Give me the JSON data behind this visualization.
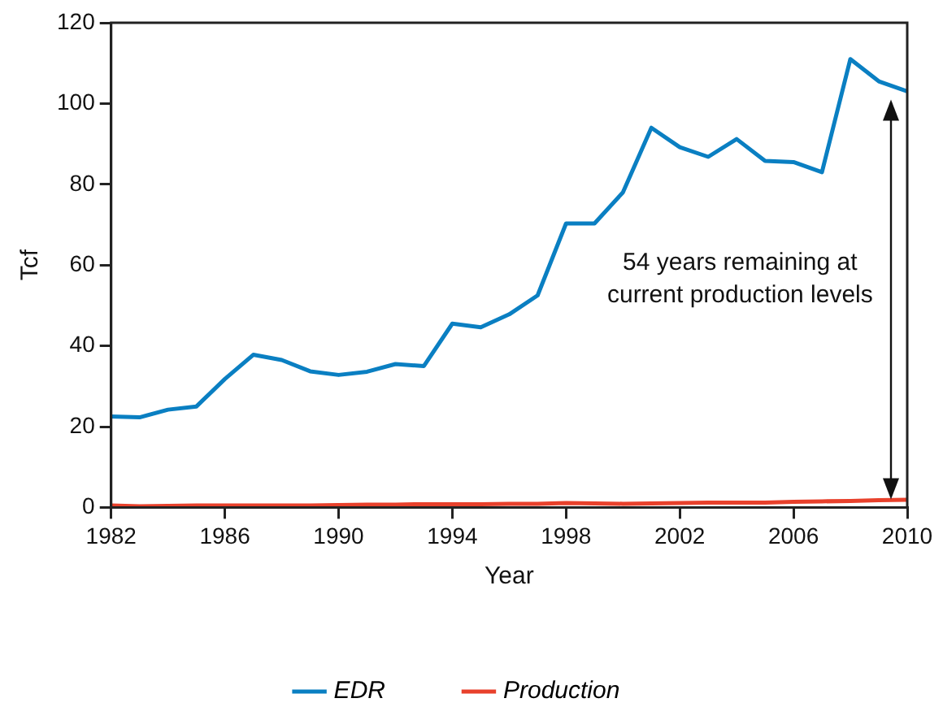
{
  "chart_data": {
    "type": "line",
    "xlabel": "Year",
    "ylabel": "Tcf",
    "x": [
      1982,
      1983,
      1984,
      1985,
      1986,
      1987,
      1988,
      1989,
      1990,
      1991,
      1992,
      1993,
      1994,
      1995,
      1996,
      1997,
      1998,
      1999,
      2000,
      2001,
      2002,
      2003,
      2004,
      2005,
      2006,
      2007,
      2008,
      2009,
      2010
    ],
    "series": [
      {
        "name": "EDR",
        "color": "#0a7fc2",
        "values": [
          22.5,
          22.3,
          24.2,
          25,
          31.8,
          37.8,
          36.5,
          33.7,
          32.8,
          33.6,
          35.5,
          35,
          45.5,
          44.6,
          47.8,
          52.5,
          70.3,
          70.3,
          78,
          94,
          89.2,
          86.8,
          91.2,
          85.8,
          85.5,
          83,
          111,
          105.5,
          103
        ]
      },
      {
        "name": "Production",
        "color": "#e8412c",
        "values": [
          0.5,
          0.3,
          0.4,
          0.5,
          0.5,
          0.5,
          0.5,
          0.5,
          0.6,
          0.7,
          0.7,
          0.8,
          0.8,
          0.8,
          0.9,
          0.9,
          1.1,
          1,
          0.9,
          1,
          1.1,
          1.2,
          1.2,
          1.2,
          1.4,
          1.5,
          1.6,
          1.8,
          1.9
        ]
      }
    ],
    "xlim": [
      1982,
      2010
    ],
    "xticks": [
      1982,
      1986,
      1990,
      1994,
      1998,
      2002,
      2006,
      2010
    ],
    "ylim": [
      0,
      120
    ],
    "yticks": [
      0,
      20,
      40,
      60,
      80,
      100,
      120
    ],
    "annotations": [
      "54 years remaining at current production levels"
    ],
    "grid": false,
    "legend": "bottom",
    "marker": "none",
    "line_style": "solid"
  }
}
